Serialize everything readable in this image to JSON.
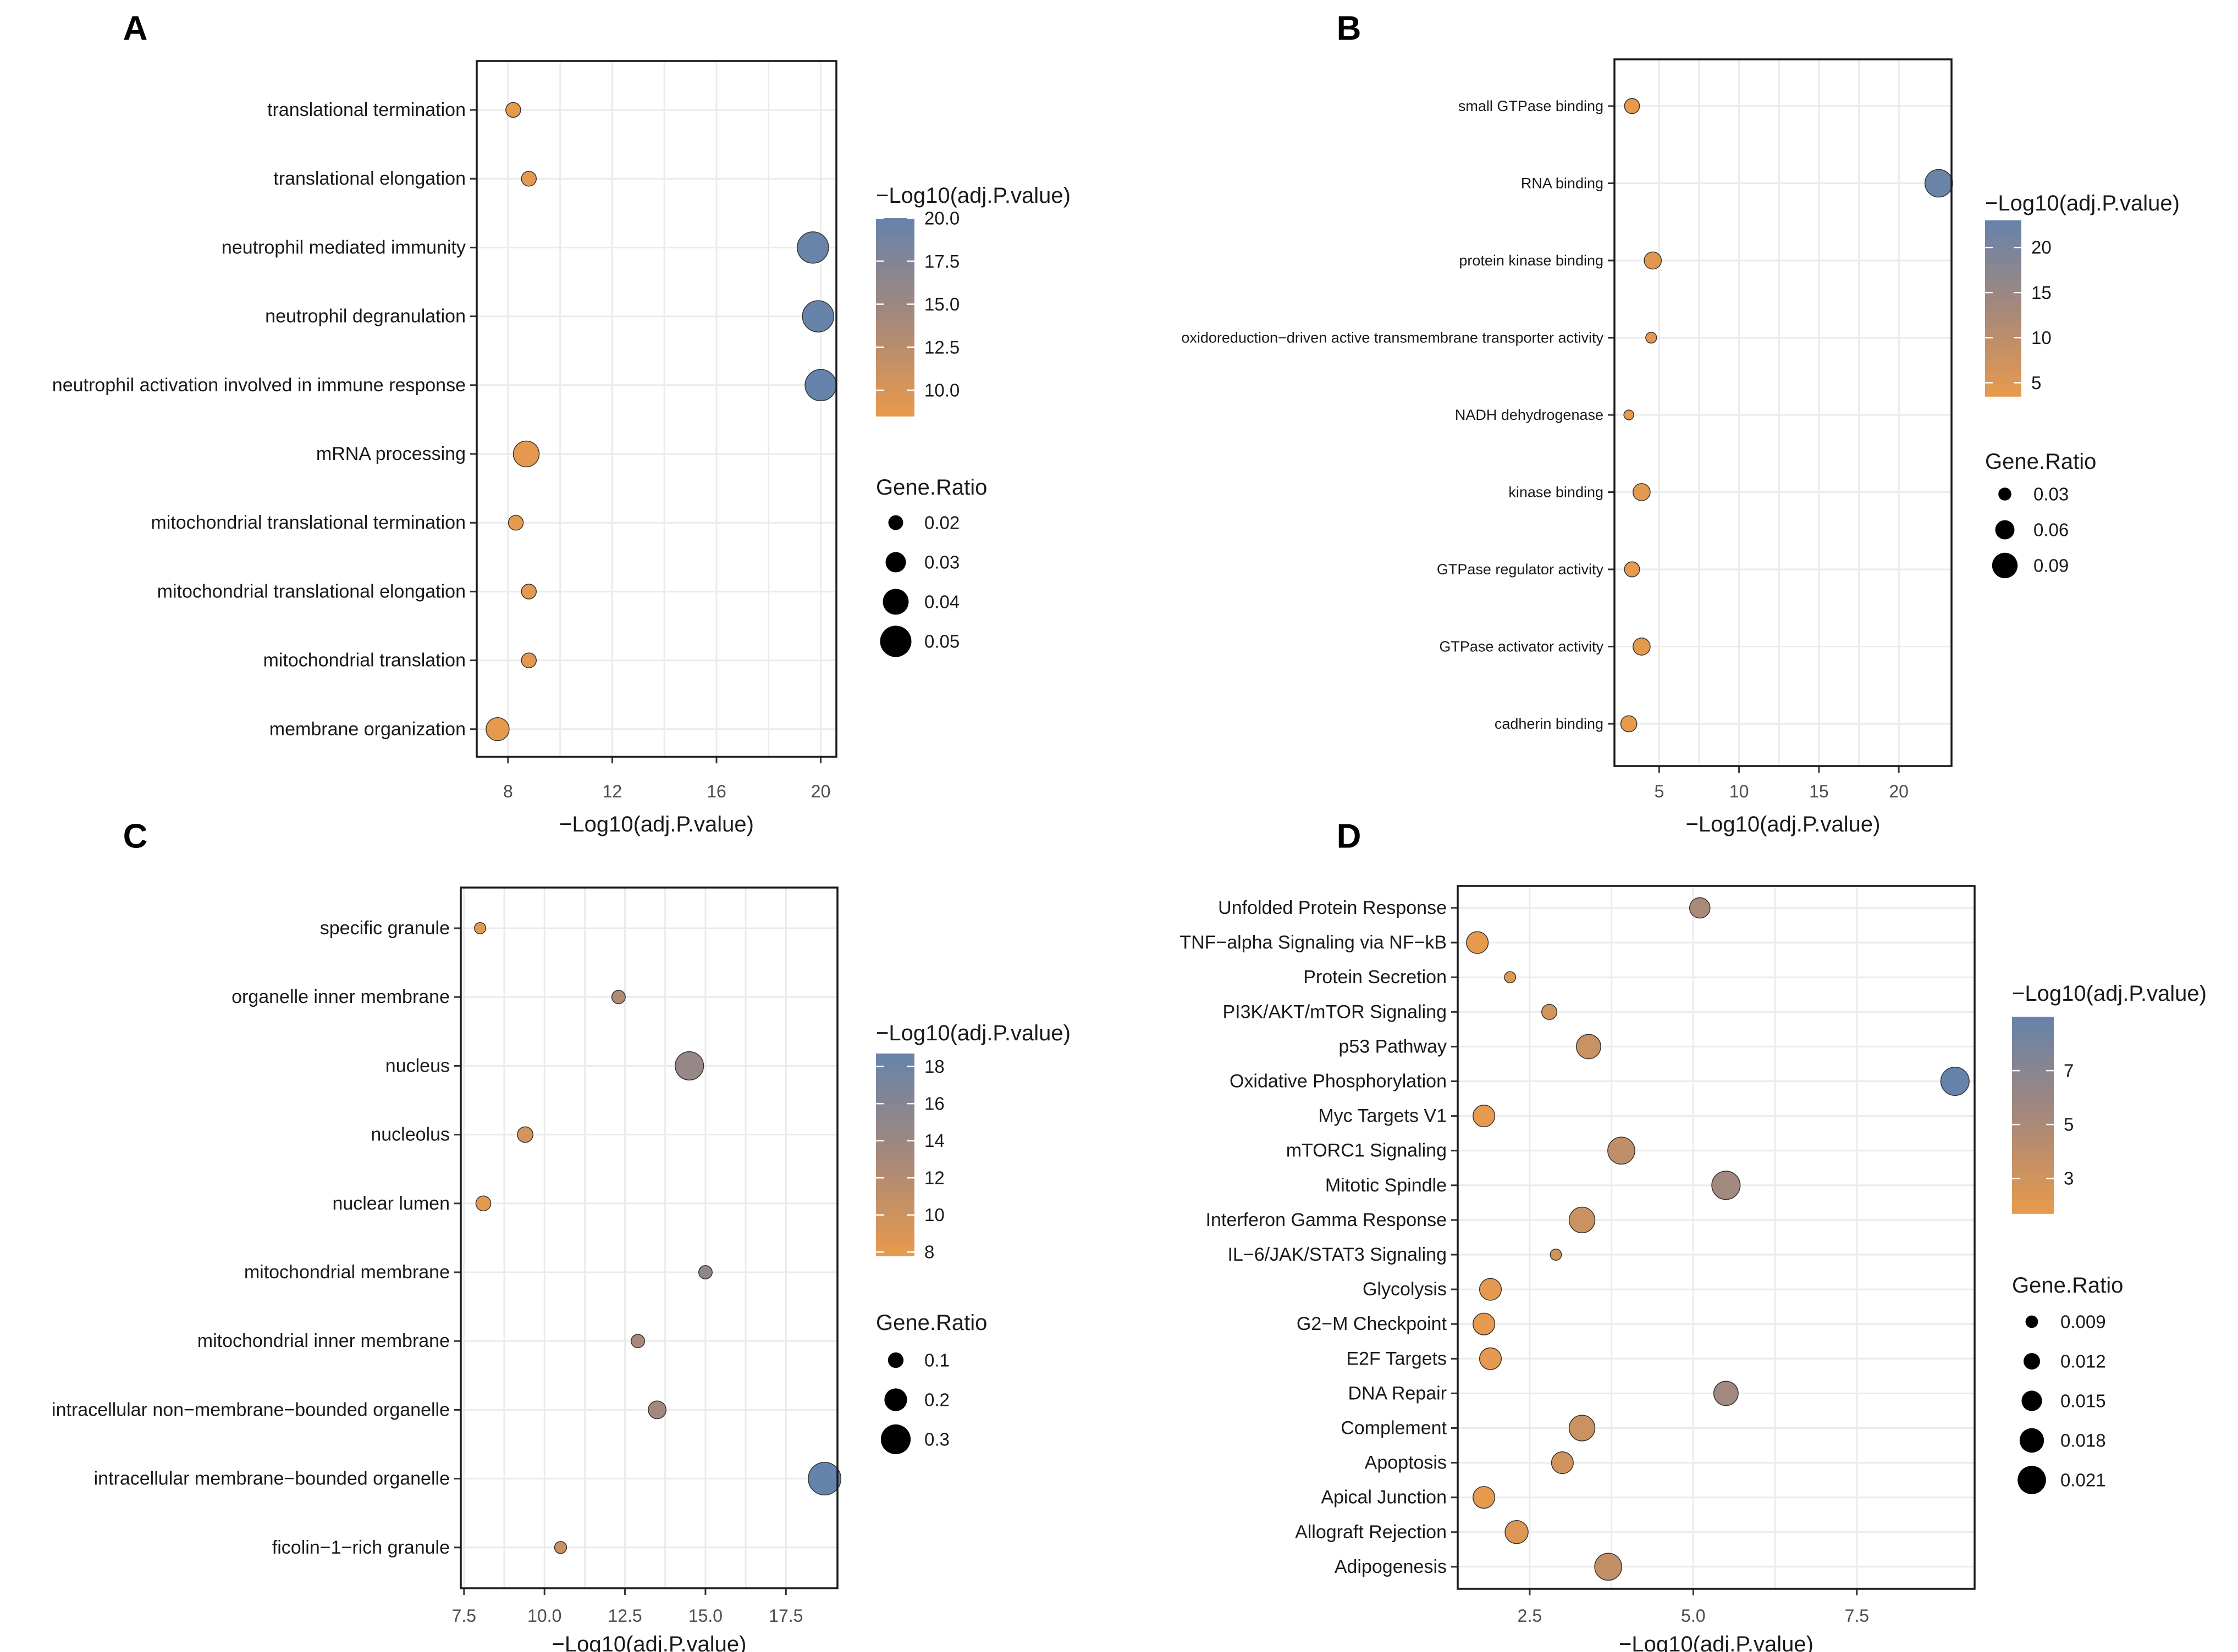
{
  "chart_data": [
    {
      "panel": "A",
      "type": "scatter",
      "xlabel": "−Log10(adj.P.value)",
      "xlim": [
        6.8,
        20.6
      ],
      "xticks": [
        8,
        12,
        16,
        20
      ],
      "xtick_labels": [
        "8",
        "12",
        "16",
        "20"
      ],
      "categories": [
        "translational termination",
        "translational elongation",
        "neutrophil mediated immunity",
        "neutrophil degranulation",
        "neutrophil activation involved in immune response",
        "mRNA processing",
        "mitochondrial translational termination",
        "mitochondrial translational elongation",
        "mitochondrial translation",
        "membrane organization"
      ],
      "x": [
        8.2,
        8.8,
        19.7,
        19.9,
        20.0,
        8.7,
        8.3,
        8.8,
        8.8,
        7.6
      ],
      "gene_ratio": [
        0.02,
        0.02,
        0.05,
        0.05,
        0.05,
        0.04,
        0.02,
        0.02,
        0.02,
        0.035
      ],
      "color_min": 8.5,
      "color_max": 20.0,
      "color_title": "−Log10(adj.P.value)",
      "color_ticks": [
        {
          "v": 20.0,
          "label": "20.0"
        },
        {
          "v": 17.5,
          "label": "17.5"
        },
        {
          "v": 15.0,
          "label": "15.0"
        },
        {
          "v": 12.5,
          "label": "12.5"
        },
        {
          "v": 10.0,
          "label": "10.0"
        }
      ],
      "size_title": "Gene.Ratio",
      "size_legend": [
        {
          "v": 0.02,
          "label": "0.02"
        },
        {
          "v": 0.03,
          "label": "0.03"
        },
        {
          "v": 0.04,
          "label": "0.04"
        },
        {
          "v": 0.05,
          "label": "0.05"
        }
      ],
      "size_domain": [
        0.015,
        0.055
      ]
    },
    {
      "panel": "B",
      "type": "scatter",
      "xlabel": "−Log10(adj.P.value)",
      "xlim": [
        2.2,
        23.3
      ],
      "xticks": [
        5,
        10,
        15,
        20
      ],
      "xtick_labels": [
        "5",
        "10",
        "15",
        "20"
      ],
      "categories": [
        "small GTPase binding",
        "RNA binding",
        "protein kinase binding",
        "oxidoreduction−driven active transmembrane transporter activity",
        "NADH dehydrogenase",
        "kinase binding",
        "GTPase regulator activity",
        "GTPase activator activity",
        "cadherin binding"
      ],
      "x": [
        3.3,
        22.5,
        4.6,
        4.5,
        3.1,
        3.9,
        3.3,
        3.9,
        3.1
      ],
      "gene_ratio": [
        0.04,
        0.1,
        0.05,
        0.02,
        0.015,
        0.05,
        0.04,
        0.05,
        0.045
      ],
      "color_min": 3.5,
      "color_max": 23,
      "color_title": "−Log10(adj.P.value)",
      "color_ticks": [
        {
          "v": 20,
          "label": "20"
        },
        {
          "v": 15,
          "label": "15"
        },
        {
          "v": 10,
          "label": "10"
        },
        {
          "v": 5,
          "label": "5"
        }
      ],
      "size_title": "Gene.Ratio",
      "size_legend": [
        {
          "v": 0.03,
          "label": "0.03"
        },
        {
          "v": 0.06,
          "label": "0.06"
        },
        {
          "v": 0.09,
          "label": "0.09"
        }
      ],
      "size_domain": [
        0.01,
        0.11
      ]
    },
    {
      "panel": "C",
      "type": "scatter",
      "xlabel": "−Log10(adj.P.value)",
      "xlim": [
        7.4,
        19.1
      ],
      "xticks": [
        7.5,
        10.0,
        12.5,
        15.0,
        17.5
      ],
      "xtick_labels": [
        "7.5",
        "10.0",
        "12.5",
        "15.0",
        "17.5"
      ],
      "categories": [
        "specific granule",
        "organelle inner membrane",
        "nucleus",
        "nucleolus",
        "nuclear lumen",
        "mitochondrial membrane",
        "mitochondrial inner membrane",
        "intracellular non−membrane−bounded organelle",
        "intracellular membrane−bounded organelle",
        "ficolin−1−rich granule"
      ],
      "x": [
        8.0,
        12.3,
        14.5,
        9.4,
        8.1,
        15.0,
        12.9,
        13.5,
        18.7,
        10.5
      ],
      "gene_ratio": [
        0.04,
        0.07,
        0.28,
        0.1,
        0.09,
        0.07,
        0.07,
        0.13,
        0.34,
        0.05
      ],
      "color_min": 7.8,
      "color_max": 18.7,
      "color_title": "−Log10(adj.P.value)",
      "color_ticks": [
        {
          "v": 18,
          "label": "18"
        },
        {
          "v": 16,
          "label": "16"
        },
        {
          "v": 14,
          "label": "14"
        },
        {
          "v": 12,
          "label": "12"
        },
        {
          "v": 10,
          "label": "10"
        },
        {
          "v": 8,
          "label": "8"
        }
      ],
      "size_title": "Gene.Ratio",
      "size_legend": [
        {
          "v": 0.1,
          "label": "0.1"
        },
        {
          "v": 0.2,
          "label": "0.2"
        },
        {
          "v": 0.3,
          "label": "0.3"
        }
      ],
      "size_domain": [
        0.02,
        0.36
      ]
    },
    {
      "panel": "D",
      "type": "scatter",
      "xlabel": "−Log10(adj.P.value)",
      "xlim": [
        1.4,
        9.3
      ],
      "xticks": [
        2.5,
        5.0,
        7.5
      ],
      "xtick_labels": [
        "2.5",
        "5.0",
        "7.5"
      ],
      "categories": [
        "Unfolded Protein Response",
        "TNF−alpha Signaling via NF−kB",
        "Protein Secretion",
        "PI3K/AKT/mTOR  Signaling",
        "p53 Pathway",
        "Oxidative Phosphorylation",
        "Myc Targets V1",
        "mTORC1 Signaling",
        "Mitotic Spindle",
        "Interferon Gamma Response",
        "IL−6/JAK/STAT3 Signaling",
        "Glycolysis",
        "G2−M Checkpoint",
        "E2F Targets",
        "DNA Repair",
        "Complement",
        "Apoptosis",
        "Apical Junction",
        "Allograft Rejection",
        "Adipogenesis"
      ],
      "x": [
        5.1,
        1.7,
        2.2,
        2.8,
        3.4,
        9.0,
        1.8,
        3.9,
        5.5,
        3.3,
        2.9,
        1.9,
        1.8,
        1.9,
        5.5,
        3.3,
        3.0,
        1.8,
        2.3,
        3.7
      ],
      "gene_ratio": [
        0.015,
        0.016,
        0.008,
        0.011,
        0.018,
        0.021,
        0.016,
        0.02,
        0.021,
        0.019,
        0.008,
        0.016,
        0.016,
        0.016,
        0.018,
        0.019,
        0.016,
        0.016,
        0.017,
        0.02
      ],
      "color_min": 1.7,
      "color_max": 9.0,
      "color_title": "−Log10(adj.P.value)",
      "color_ticks": [
        {
          "v": 7,
          "label": "7"
        },
        {
          "v": 5,
          "label": "5"
        },
        {
          "v": 3,
          "label": "3"
        }
      ],
      "size_title": "Gene.Ratio",
      "size_legend": [
        {
          "v": 0.009,
          "label": "0.009"
        },
        {
          "v": 0.012,
          "label": "0.012"
        },
        {
          "v": 0.015,
          "label": "0.015"
        },
        {
          "v": 0.018,
          "label": "0.018"
        },
        {
          "v": 0.021,
          "label": "0.021"
        }
      ],
      "size_domain": [
        0.007,
        0.022
      ]
    }
  ],
  "colors": {
    "low": "#e89a4c",
    "mid": "#a5887c",
    "high": "#6683ab",
    "grid": "#ebebeb",
    "frame": "#1a1a1a"
  }
}
